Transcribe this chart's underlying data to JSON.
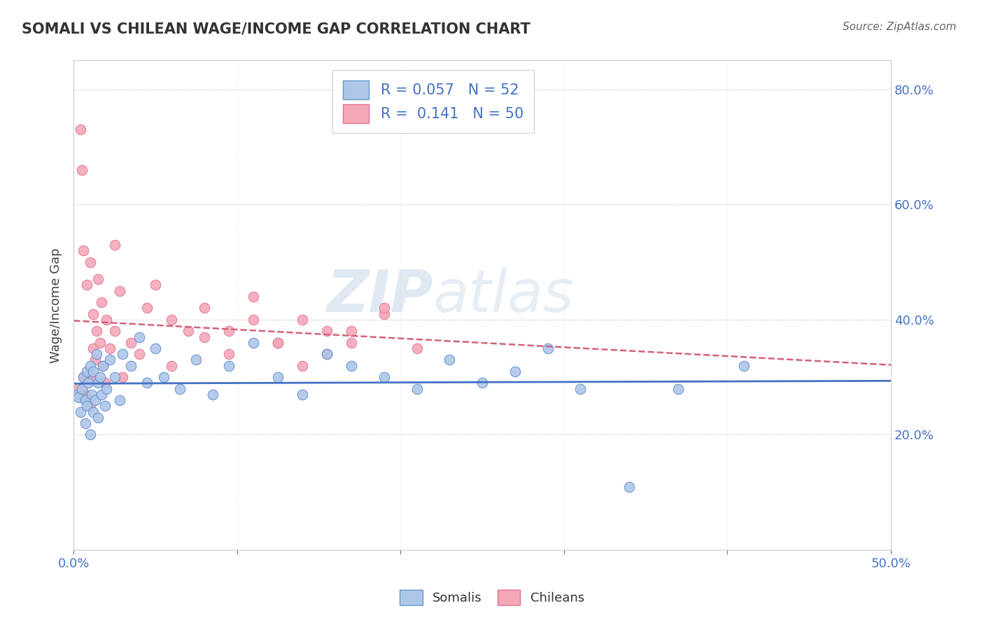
{
  "title": "SOMALI VS CHILEAN WAGE/INCOME GAP CORRELATION CHART",
  "source": "Source: ZipAtlas.com",
  "ylabel": "Wage/Income Gap",
  "xlim": [
    0.0,
    0.5
  ],
  "ylim": [
    0.0,
    0.85
  ],
  "somali_R": 0.057,
  "somali_N": 52,
  "chilean_R": 0.141,
  "chilean_N": 50,
  "somali_color": "#aec6e8",
  "chilean_color": "#f4a8b8",
  "somali_line_color": "#4472c4",
  "chilean_line_color": "#d4607a",
  "watermark_zip": "ZIP",
  "watermark_atlas": "atlas",
  "somali_x": [
    0.002,
    0.003,
    0.004,
    0.005,
    0.006,
    0.007,
    0.007,
    0.008,
    0.008,
    0.009,
    0.01,
    0.01,
    0.011,
    0.012,
    0.012,
    0.013,
    0.014,
    0.015,
    0.015,
    0.016,
    0.017,
    0.018,
    0.019,
    0.02,
    0.022,
    0.025,
    0.028,
    0.03,
    0.035,
    0.04,
    0.045,
    0.05,
    0.055,
    0.065,
    0.075,
    0.085,
    0.095,
    0.11,
    0.125,
    0.14,
    0.155,
    0.17,
    0.19,
    0.21,
    0.23,
    0.25,
    0.27,
    0.29,
    0.31,
    0.34,
    0.37,
    0.41
  ],
  "somali_y": [
    0.27,
    0.265,
    0.24,
    0.28,
    0.3,
    0.26,
    0.22,
    0.31,
    0.25,
    0.29,
    0.32,
    0.2,
    0.27,
    0.24,
    0.31,
    0.26,
    0.34,
    0.29,
    0.23,
    0.3,
    0.27,
    0.32,
    0.25,
    0.28,
    0.33,
    0.3,
    0.26,
    0.34,
    0.32,
    0.37,
    0.29,
    0.35,
    0.3,
    0.28,
    0.33,
    0.27,
    0.32,
    0.36,
    0.3,
    0.27,
    0.34,
    0.32,
    0.3,
    0.28,
    0.33,
    0.29,
    0.31,
    0.35,
    0.28,
    0.11,
    0.28,
    0.32
  ],
  "chilean_x": [
    0.003,
    0.004,
    0.005,
    0.006,
    0.006,
    0.007,
    0.008,
    0.009,
    0.01,
    0.01,
    0.011,
    0.012,
    0.012,
    0.013,
    0.014,
    0.015,
    0.016,
    0.017,
    0.018,
    0.019,
    0.02,
    0.022,
    0.025,
    0.028,
    0.03,
    0.035,
    0.04,
    0.045,
    0.05,
    0.06,
    0.07,
    0.08,
    0.095,
    0.11,
    0.125,
    0.14,
    0.155,
    0.17,
    0.19,
    0.21,
    0.025,
    0.06,
    0.08,
    0.095,
    0.11,
    0.125,
    0.14,
    0.155,
    0.17,
    0.19
  ],
  "chilean_y": [
    0.28,
    0.73,
    0.66,
    0.3,
    0.52,
    0.27,
    0.46,
    0.3,
    0.5,
    0.25,
    0.3,
    0.35,
    0.41,
    0.33,
    0.38,
    0.47,
    0.36,
    0.43,
    0.32,
    0.29,
    0.4,
    0.35,
    0.38,
    0.45,
    0.3,
    0.36,
    0.34,
    0.42,
    0.46,
    0.32,
    0.38,
    0.37,
    0.34,
    0.4,
    0.36,
    0.32,
    0.38,
    0.36,
    0.41,
    0.35,
    0.53,
    0.4,
    0.42,
    0.38,
    0.44,
    0.36,
    0.4,
    0.34,
    0.38,
    0.42
  ]
}
